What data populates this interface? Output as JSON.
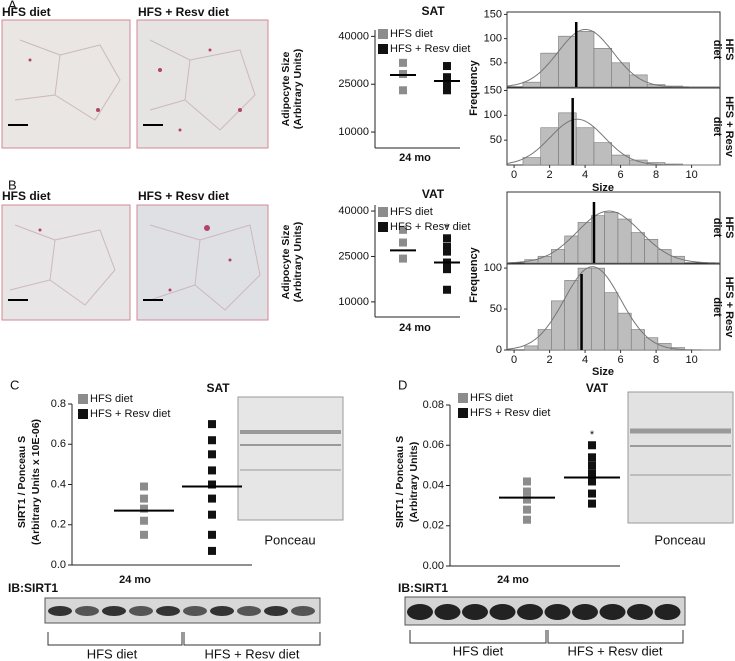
{
  "labels": {
    "panels": [
      "A",
      "B",
      "C",
      "D"
    ],
    "image_captions": [
      "HFS diet",
      "HFS + Resv diet",
      "HFS diet",
      "HFS + Resv diet"
    ],
    "ponceau": [
      "Ponceau",
      "Ponceau"
    ],
    "blot": [
      "IB:SIRT1",
      "IB:SIRT1"
    ],
    "groups": [
      "HFS diet",
      "HFS + Resv diet",
      "HFS diet",
      "HFS + Resv diet"
    ]
  },
  "chart_data": [
    {
      "type": "dot",
      "title": "SAT",
      "ylabel": [
        "Adipocyte Size",
        "(Arbitrary Units)"
      ],
      "xlabel": "24 mo",
      "ylim": [
        5000,
        42000
      ],
      "yticks": [
        10000,
        25000,
        40000
      ],
      "series": [
        {
          "name": "HFS diet",
          "color": "#8c8c8c",
          "values": [
            31700,
            28200,
            23100
          ],
          "mean": 27900
        },
        {
          "name": "HFS + Resv diet",
          "color": "#111111",
          "values": [
            30700,
            27200,
            25000,
            23100
          ],
          "mean": 26000
        }
      ]
    },
    {
      "type": "histogram",
      "ylabel": "Frequency",
      "side_label": [
        "HFS",
        "diet"
      ],
      "color": "#bdbdbd",
      "bins": [
        0.5,
        1.5,
        2.5,
        3.5,
        4.5,
        5.5,
        6.5,
        7.5,
        8.5,
        9.5
      ],
      "values": [
        10,
        70,
        105,
        115,
        80,
        50,
        25,
        5,
        2
      ],
      "mean": 3.5,
      "xlim": [
        -0.4,
        11.6
      ],
      "ylim": [
        0,
        155
      ],
      "yticks": [
        50,
        100,
        150
      ]
    },
    {
      "type": "histogram",
      "xlabel": "Size",
      "side_label": [
        "HFS + Resv",
        "diet"
      ],
      "color": "#bdbdbd",
      "bins": [
        0.5,
        1.5,
        2.5,
        3.5,
        4.5,
        5.5,
        6.5,
        7.5,
        8.5,
        9.5
      ],
      "values": [
        15,
        75,
        105,
        75,
        45,
        20,
        10,
        5,
        2
      ],
      "mean": 3.3,
      "xlim": [
        -0.4,
        11.6
      ],
      "xticks": [
        0,
        2,
        4,
        6,
        8,
        10
      ],
      "ylim": [
        0,
        155
      ],
      "yticks": [
        50,
        100,
        150
      ]
    },
    {
      "type": "dot",
      "title": "VAT",
      "ylabel": [
        "Adipocyte Size",
        "(Arbitrary Units)"
      ],
      "xlabel": "24 mo",
      "ylim": [
        5000,
        42000
      ],
      "yticks": [
        10000,
        25000,
        40000
      ],
      "series": [
        {
          "name": "HFS diet",
          "color": "#8c8c8c",
          "values": [
            33800,
            29600,
            24300
          ],
          "mean": 27000
        },
        {
          "name": "HFS + Resv diet",
          "color": "#111111",
          "values": [
            31000,
            28200,
            26600,
            23000,
            20800,
            14000
          ],
          "mean": 23000,
          "annotation": "*"
        }
      ]
    },
    {
      "type": "histogram",
      "ylabel": "Frequency",
      "side_label": [
        "HFS",
        "diet"
      ],
      "color": "#bdbdbd",
      "bins": [
        0.6,
        1.35,
        2.1,
        2.85,
        3.6,
        4.35,
        5.1,
        5.85,
        6.6,
        7.35,
        8.1,
        8.85,
        9.6
      ],
      "values": [
        5,
        10,
        20,
        40,
        60,
        70,
        75,
        65,
        45,
        35,
        20,
        10
      ],
      "mean": 4.5,
      "xlim": [
        -0.4,
        11.6
      ],
      "ylim": [
        0,
        105
      ]
    },
    {
      "type": "histogram",
      "xlabel": "Size",
      "side_label": [
        "HFS + Resv",
        "diet"
      ],
      "color": "#bdbdbd",
      "bins": [
        0.6,
        1.35,
        2.1,
        2.85,
        3.6,
        4.35,
        5.1,
        5.85,
        6.6,
        7.35,
        8.1,
        8.85,
        9.6
      ],
      "values": [
        5,
        25,
        60,
        85,
        100,
        100,
        70,
        45,
        25,
        15,
        8,
        3
      ],
      "mean": 3.8,
      "xlim": [
        -0.4,
        11.6
      ],
      "xticks": [
        0,
        2,
        4,
        6,
        8,
        10
      ],
      "ylim": [
        0,
        105
      ],
      "yticks": [
        0,
        50,
        100
      ]
    },
    {
      "type": "dot",
      "title": "SAT",
      "ylabel": [
        "SIRT1 / Ponceau S",
        "(Arbitrary Units x 10E-06)"
      ],
      "xlabel": "24 mo",
      "ylim": [
        0,
        0.8
      ],
      "yticks": [
        {
          "value": 0,
          "label": "0.0"
        },
        0.2,
        0.4,
        0.6,
        0.8
      ],
      "series": [
        {
          "name": "HFS diet",
          "color": "#8c8c8c",
          "values": [
            0.39,
            0.33,
            0.28,
            0.22,
            0.15
          ],
          "mean": 0.27
        },
        {
          "name": "HFS + Resv diet",
          "color": "#111111",
          "values": [
            0.7,
            0.62,
            0.55,
            0.47,
            0.4,
            0.33,
            0.25,
            0.15,
            0.07
          ],
          "mean": 0.39
        }
      ]
    },
    {
      "type": "dot",
      "title": "VAT",
      "ylabel": [
        "SIRT1 / Ponceau S",
        "(Arbitrary Units)"
      ],
      "xlabel": "24 mo",
      "ylim": [
        0,
        0.08
      ],
      "yticks": [
        {
          "value": 0,
          "label": "0.00"
        },
        0.02,
        0.04,
        0.06,
        0.08
      ],
      "series": [
        {
          "name": "HFS diet",
          "color": "#8c8c8c",
          "values": [
            0.042,
            0.037,
            0.033,
            0.028,
            0.023
          ],
          "mean": 0.034
        },
        {
          "name": "HFS + Resv diet",
          "color": "#111111",
          "values": [
            0.06,
            0.054,
            0.05,
            0.046,
            0.042,
            0.036,
            0.031
          ],
          "mean": 0.044,
          "annotation": "*"
        }
      ]
    }
  ]
}
